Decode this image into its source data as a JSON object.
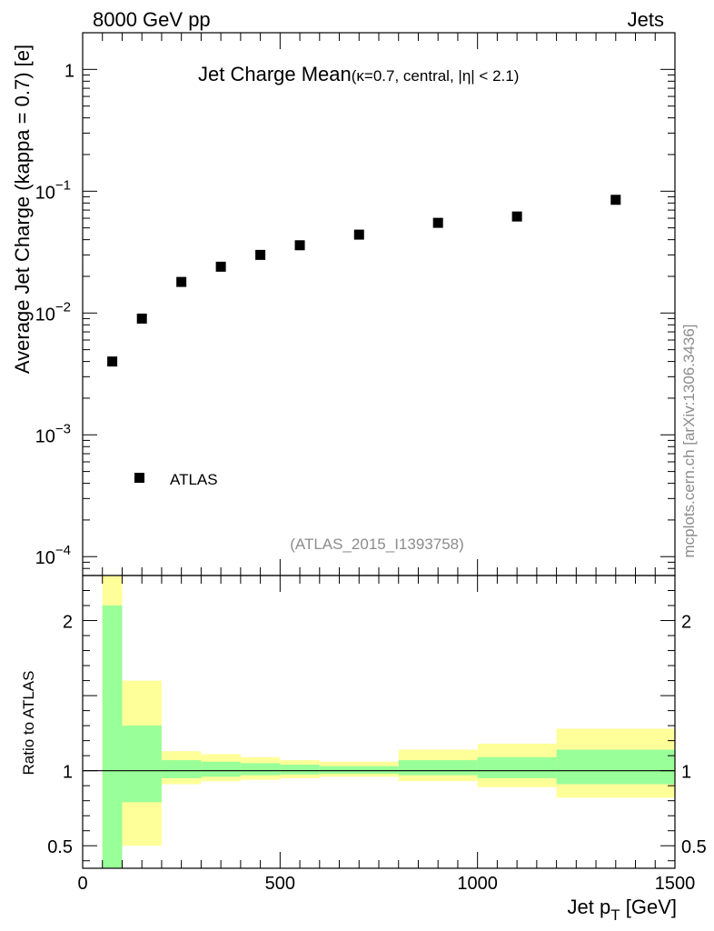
{
  "header": {
    "left": "8000 GeV pp",
    "right": "Jets"
  },
  "side_label": "mcplots.cern.ch [arXiv:1306.3436]",
  "analysis_id": "(ATLAS_2015_I1393758)",
  "chart_data": [
    {
      "type": "scatter",
      "title_main": "Jet Charge Mean",
      "title_sub": "(κ=0.7, central, |η| < 2.1)",
      "ylabel": "Average Jet Charge (kappa = 0.7) [e]",
      "yscale": "log",
      "ylim": [
        7e-05,
        2
      ],
      "xlim": [
        0,
        1500
      ],
      "y_tick_labels": [
        {
          "base": "10",
          "exp": "−4",
          "value": 0.0001
        },
        {
          "base": "10",
          "exp": "−3",
          "value": 0.001
        },
        {
          "base": "10",
          "exp": "−2",
          "value": 0.01
        },
        {
          "base": "10",
          "exp": "−1",
          "value": 0.1
        },
        {
          "base": "1",
          "exp": "",
          "value": 1
        }
      ],
      "legend": {
        "placement": "bottom-left",
        "entries": [
          "ATLAS"
        ]
      },
      "series": [
        {
          "name": "ATLAS",
          "marker": "square",
          "color": "#000000",
          "x": [
            75,
            150,
            250,
            350,
            450,
            550,
            700,
            900,
            1100,
            1350
          ],
          "y": [
            0.004,
            0.009,
            0.018,
            0.024,
            0.03,
            0.036,
            0.044,
            0.055,
            0.062,
            0.085
          ]
        }
      ]
    },
    {
      "type": "area",
      "ylabel": "Ratio to ATLAS",
      "xlabel": "Jet p",
      "xlabel_sub": "T",
      "xlabel_unit": " [GeV]",
      "xlim": [
        0,
        1500
      ],
      "ylim": [
        0.35,
        2.3
      ],
      "x_ticks": [
        "0",
        "500",
        "1000",
        "1500"
      ],
      "x_tick_values": [
        0,
        500,
        1000,
        1500
      ],
      "y_ticks": [
        "0.5",
        "1",
        "2"
      ],
      "y_tick_values": [
        0.5,
        1,
        2
      ],
      "reference_line": 1,
      "colors": {
        "inner": "#99ff99",
        "outer": "#ffff99"
      },
      "bins": [
        {
          "lo": 50,
          "hi": 100,
          "inner": [
            0.3,
            2.1
          ],
          "outer": [
            0.3,
            2.4
          ]
        },
        {
          "lo": 100,
          "hi": 200,
          "inner": [
            0.79,
            1.3
          ],
          "outer": [
            0.5,
            1.6
          ]
        },
        {
          "lo": 200,
          "hi": 300,
          "inner": [
            0.95,
            1.07
          ],
          "outer": [
            0.91,
            1.13
          ]
        },
        {
          "lo": 300,
          "hi": 400,
          "inner": [
            0.96,
            1.06
          ],
          "outer": [
            0.93,
            1.11
          ]
        },
        {
          "lo": 400,
          "hi": 500,
          "inner": [
            0.97,
            1.05
          ],
          "outer": [
            0.94,
            1.09
          ]
        },
        {
          "lo": 500,
          "hi": 600,
          "inner": [
            0.975,
            1.04
          ],
          "outer": [
            0.95,
            1.07
          ]
        },
        {
          "lo": 600,
          "hi": 800,
          "inner": [
            0.98,
            1.03
          ],
          "outer": [
            0.96,
            1.06
          ]
        },
        {
          "lo": 800,
          "hi": 1000,
          "inner": [
            0.97,
            1.07
          ],
          "outer": [
            0.93,
            1.14
          ]
        },
        {
          "lo": 1000,
          "hi": 1200,
          "inner": [
            0.95,
            1.09
          ],
          "outer": [
            0.89,
            1.18
          ]
        },
        {
          "lo": 1200,
          "hi": 1500,
          "inner": [
            0.91,
            1.14
          ],
          "outer": [
            0.82,
            1.28
          ]
        }
      ]
    }
  ]
}
